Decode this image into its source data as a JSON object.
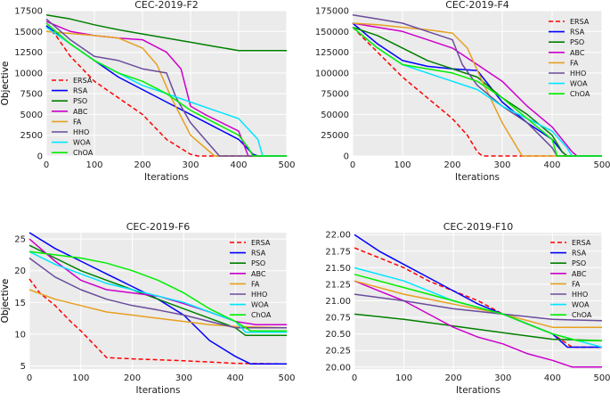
{
  "figure": "CEC-2019 convergence curves",
  "series_colors": {
    "ERSA": "#ff0000",
    "RSA": "#0000ff",
    "PSO": "#008000",
    "ABC": "#cc00cc",
    "FA": "#e6a020",
    "HHO": "#6a4c9c",
    "WOA": "#00e5ff",
    "ChOA": "#00ee00"
  },
  "chart_data": [
    {
      "type": "line",
      "title": "CEC-2019-F2",
      "xlabel": "Iterations",
      "ylabel": "Objective",
      "xlim": [
        0,
        500
      ],
      "ylim": [
        0,
        17500
      ],
      "xticks": [
        "0",
        "100",
        "200",
        "300",
        "400",
        "500"
      ],
      "yticks": [
        "0",
        "2500",
        "5000",
        "7500",
        "10000",
        "12500",
        "15000",
        "17500"
      ],
      "ytick_values": [
        0,
        2500,
        5000,
        7500,
        10000,
        12500,
        15000,
        17500
      ],
      "legend_position": "center-left",
      "series": [
        {
          "name": "ERSA",
          "x": [
            0,
            20,
            50,
            100,
            150,
            200,
            250,
            300,
            315,
            500
          ],
          "y": [
            15700,
            14500,
            12000,
            9000,
            7000,
            5000,
            2000,
            200,
            0,
            0
          ]
        },
        {
          "name": "RSA",
          "x": [
            0,
            50,
            100,
            150,
            200,
            250,
            300,
            350,
            400,
            430,
            440,
            500
          ],
          "y": [
            15700,
            13500,
            11500,
            9500,
            8000,
            6500,
            5000,
            3500,
            2000,
            200,
            0,
            0
          ]
        },
        {
          "name": "PSO",
          "x": [
            0,
            50,
            100,
            150,
            200,
            250,
            300,
            350,
            400,
            500
          ],
          "y": [
            17000,
            16500,
            15800,
            15200,
            14700,
            14200,
            13700,
            13200,
            12700,
            12700
          ]
        },
        {
          "name": "ABC",
          "x": [
            0,
            50,
            100,
            150,
            200,
            250,
            280,
            300,
            330,
            400,
            420,
            500
          ],
          "y": [
            16200,
            15000,
            14500,
            14200,
            14000,
            12500,
            10500,
            6000,
            5000,
            3000,
            0,
            0
          ]
        },
        {
          "name": "FA",
          "x": [
            0,
            100,
            150,
            200,
            230,
            260,
            300,
            350,
            500
          ],
          "y": [
            15000,
            14500,
            14200,
            13000,
            11000,
            7000,
            2500,
            0,
            0
          ]
        },
        {
          "name": "HHO",
          "x": [
            0,
            50,
            100,
            150,
            200,
            250,
            270,
            300,
            330,
            360,
            500
          ],
          "y": [
            16500,
            14000,
            12000,
            11500,
            10500,
            10000,
            7000,
            4000,
            2000,
            0,
            0
          ]
        },
        {
          "name": "WOA",
          "x": [
            0,
            50,
            100,
            150,
            200,
            250,
            300,
            350,
            400,
            440,
            450,
            500
          ],
          "y": [
            15500,
            13500,
            11500,
            10000,
            8500,
            7500,
            6500,
            5500,
            4500,
            2000,
            0,
            0
          ]
        },
        {
          "name": "ChOA",
          "x": [
            0,
            50,
            100,
            150,
            200,
            250,
            300,
            350,
            400,
            420,
            430,
            500
          ],
          "y": [
            16000,
            13500,
            11500,
            10000,
            9000,
            7500,
            5500,
            4000,
            2500,
            1000,
            0,
            0
          ]
        }
      ]
    },
    {
      "type": "line",
      "title": "CEC-2019-F4",
      "xlabel": "Iterations",
      "ylabel": "Objective",
      "xlim": [
        0,
        500
      ],
      "ylim": [
        0,
        175000
      ],
      "xticks": [
        "0",
        "100",
        "200",
        "300",
        "400",
        "500"
      ],
      "yticks": [
        "0",
        "25000",
        "50000",
        "75000",
        "100000",
        "125000",
        "150000",
        "175000"
      ],
      "ytick_values": [
        0,
        25000,
        50000,
        75000,
        100000,
        125000,
        150000,
        175000
      ],
      "legend_position": "top-right",
      "series": [
        {
          "name": "ERSA",
          "x": [
            0,
            50,
            100,
            150,
            200,
            230,
            250,
            260,
            500
          ],
          "y": [
            155000,
            125000,
            95000,
            70000,
            45000,
            25000,
            5000,
            0,
            0
          ]
        },
        {
          "name": "RSA",
          "x": [
            0,
            50,
            100,
            150,
            200,
            250,
            300,
            350,
            400,
            420,
            430,
            500
          ],
          "y": [
            160000,
            135000,
            115000,
            108000,
            105000,
            103000,
            65000,
            40000,
            20000,
            5000,
            0,
            0
          ]
        },
        {
          "name": "PSO",
          "x": [
            0,
            50,
            100,
            150,
            200,
            250,
            300,
            350,
            400,
            420,
            430,
            500
          ],
          "y": [
            155000,
            145000,
            130000,
            115000,
            105000,
            95000,
            70000,
            50000,
            25000,
            5000,
            0,
            0
          ]
        },
        {
          "name": "ABC",
          "x": [
            0,
            50,
            100,
            150,
            200,
            250,
            300,
            350,
            400,
            440,
            450,
            500
          ],
          "y": [
            160000,
            155000,
            150000,
            140000,
            130000,
            110000,
            90000,
            60000,
            35000,
            5000,
            0,
            0
          ]
        },
        {
          "name": "FA",
          "x": [
            0,
            50,
            100,
            150,
            200,
            230,
            260,
            300,
            330,
            340,
            500
          ],
          "y": [
            160000,
            158000,
            155000,
            152000,
            148000,
            130000,
            90000,
            40000,
            10000,
            0,
            0
          ]
        },
        {
          "name": "HHO",
          "x": [
            0,
            50,
            100,
            150,
            200,
            220,
            250,
            300,
            350,
            400,
            410,
            500
          ],
          "y": [
            170000,
            165000,
            160000,
            150000,
            140000,
            110000,
            85000,
            60000,
            40000,
            10000,
            0,
            0
          ]
        },
        {
          "name": "WOA",
          "x": [
            0,
            50,
            100,
            150,
            200,
            250,
            300,
            350,
            400,
            430,
            440,
            500
          ],
          "y": [
            155000,
            130000,
            110000,
            100000,
            90000,
            80000,
            60000,
            45000,
            30000,
            10000,
            0,
            0
          ]
        },
        {
          "name": "ChOA",
          "x": [
            0,
            50,
            100,
            150,
            200,
            250,
            300,
            350,
            400,
            410,
            500
          ],
          "y": [
            155000,
            130000,
            110000,
            105000,
            100000,
            90000,
            70000,
            45000,
            20000,
            0,
            0
          ]
        }
      ]
    },
    {
      "type": "line",
      "title": "CEC-2019-F6",
      "xlabel": "Iterations",
      "ylabel": "Objective",
      "xlim": [
        0,
        500
      ],
      "ylim": [
        4.5,
        26
      ],
      "xticks": [
        "0",
        "100",
        "200",
        "300",
        "400",
        "500"
      ],
      "yticks": [
        "5",
        "10",
        "15",
        "20",
        "25"
      ],
      "ytick_values": [
        5,
        10,
        15,
        20,
        25
      ],
      "legend_position": "top-right",
      "series": [
        {
          "name": "ERSA",
          "x": [
            0,
            20,
            50,
            80,
            100,
            130,
            150,
            200,
            300,
            400,
            500
          ],
          "y": [
            18.7,
            16.5,
            14.5,
            12,
            10.5,
            8,
            6.3,
            6.1,
            5.8,
            5.4,
            5.3
          ]
        },
        {
          "name": "RSA",
          "x": [
            0,
            50,
            100,
            150,
            200,
            250,
            300,
            350,
            400,
            430,
            500
          ],
          "y": [
            26,
            23.5,
            21.5,
            19.5,
            17.5,
            15.5,
            13,
            9,
            6.5,
            5.3,
            5.3
          ]
        },
        {
          "name": "PSO",
          "x": [
            0,
            50,
            100,
            150,
            200,
            250,
            300,
            350,
            400,
            420,
            500
          ],
          "y": [
            24,
            22,
            20,
            18.5,
            17,
            15.5,
            14,
            12.5,
            11,
            9.8,
            9.8
          ]
        },
        {
          "name": "ABC",
          "x": [
            0,
            50,
            100,
            150,
            200,
            250,
            300,
            350,
            400,
            440,
            500
          ],
          "y": [
            25,
            21.5,
            18.5,
            17,
            16.5,
            16,
            14.8,
            13.5,
            12,
            11.5,
            11.5
          ]
        },
        {
          "name": "FA",
          "x": [
            0,
            50,
            100,
            150,
            200,
            250,
            300,
            350,
            400,
            500
          ],
          "y": [
            17,
            15.5,
            14.5,
            13.5,
            13,
            12.5,
            12,
            11.5,
            11.2,
            11
          ]
        },
        {
          "name": "HHO",
          "x": [
            0,
            50,
            100,
            150,
            200,
            250,
            300,
            350,
            400,
            500
          ],
          "y": [
            22,
            19,
            17,
            15.5,
            14.5,
            13.8,
            13,
            12,
            11,
            11
          ]
        },
        {
          "name": "WOA",
          "x": [
            0,
            50,
            100,
            150,
            200,
            250,
            300,
            350,
            400,
            420,
            500
          ],
          "y": [
            23,
            21,
            19.5,
            18,
            17,
            16,
            15,
            13.5,
            12,
            10.3,
            10.3
          ]
        },
        {
          "name": "ChOA",
          "x": [
            0,
            50,
            100,
            150,
            200,
            250,
            300,
            350,
            400,
            430,
            500
          ],
          "y": [
            23,
            22.5,
            22,
            21.2,
            20,
            18.5,
            16.5,
            14,
            12,
            10.5,
            10.5
          ]
        }
      ]
    },
    {
      "type": "line",
      "title": "CEC-2019-F10",
      "xlabel": "Iterations",
      "ylabel": "Objective",
      "xlim": [
        0,
        500
      ],
      "ylim": [
        19.97,
        22.03
      ],
      "xticks": [
        "0",
        "100",
        "200",
        "300",
        "400",
        "500"
      ],
      "yticks": [
        "20.00",
        "20.25",
        "20.50",
        "20.75",
        "21.00",
        "21.25",
        "21.50",
        "21.75",
        "22.00"
      ],
      "ytick_values": [
        20,
        20.25,
        20.5,
        20.75,
        21,
        21.25,
        21.5,
        21.75,
        22
      ],
      "legend_position": "top-right",
      "series": [
        {
          "name": "ERSA",
          "x": [
            0,
            50,
            100,
            150,
            200,
            250,
            300,
            350,
            400,
            420,
            440,
            500
          ],
          "y": [
            21.8,
            21.65,
            21.5,
            21.3,
            21.15,
            21,
            20.8,
            20.65,
            20.5,
            20.4,
            20.3,
            20.3
          ]
        },
        {
          "name": "RSA",
          "x": [
            0,
            50,
            100,
            150,
            200,
            250,
            300,
            350,
            400,
            430,
            450,
            500
          ],
          "y": [
            22,
            21.75,
            21.55,
            21.35,
            21.15,
            20.95,
            20.8,
            20.65,
            20.5,
            20.3,
            20.3,
            20.3
          ]
        },
        {
          "name": "PSO",
          "x": [
            0,
            100,
            200,
            300,
            400,
            500
          ],
          "y": [
            20.8,
            20.72,
            20.62,
            20.52,
            20.42,
            20.4
          ]
        },
        {
          "name": "ABC",
          "x": [
            0,
            50,
            100,
            150,
            200,
            250,
            300,
            350,
            400,
            440,
            500
          ],
          "y": [
            21.3,
            21.15,
            21,
            20.8,
            20.6,
            20.45,
            20.35,
            20.2,
            20.1,
            20,
            20
          ]
        },
        {
          "name": "FA",
          "x": [
            0,
            100,
            200,
            300,
            400,
            500
          ],
          "y": [
            21.3,
            21.1,
            20.95,
            20.8,
            20.6,
            20.6
          ]
        },
        {
          "name": "HHO",
          "x": [
            0,
            100,
            200,
            300,
            400,
            500
          ],
          "y": [
            21.1,
            21,
            20.88,
            20.8,
            20.72,
            20.7
          ]
        },
        {
          "name": "WOA",
          "x": [
            0,
            100,
            200,
            300,
            400,
            500
          ],
          "y": [
            21.5,
            21.3,
            21,
            20.8,
            20.5,
            20.3
          ]
        },
        {
          "name": "ChOA",
          "x": [
            0,
            100,
            200,
            300,
            400,
            450,
            500
          ],
          "y": [
            21.4,
            21.2,
            21,
            20.8,
            20.5,
            20.4,
            20.4
          ]
        }
      ]
    }
  ]
}
